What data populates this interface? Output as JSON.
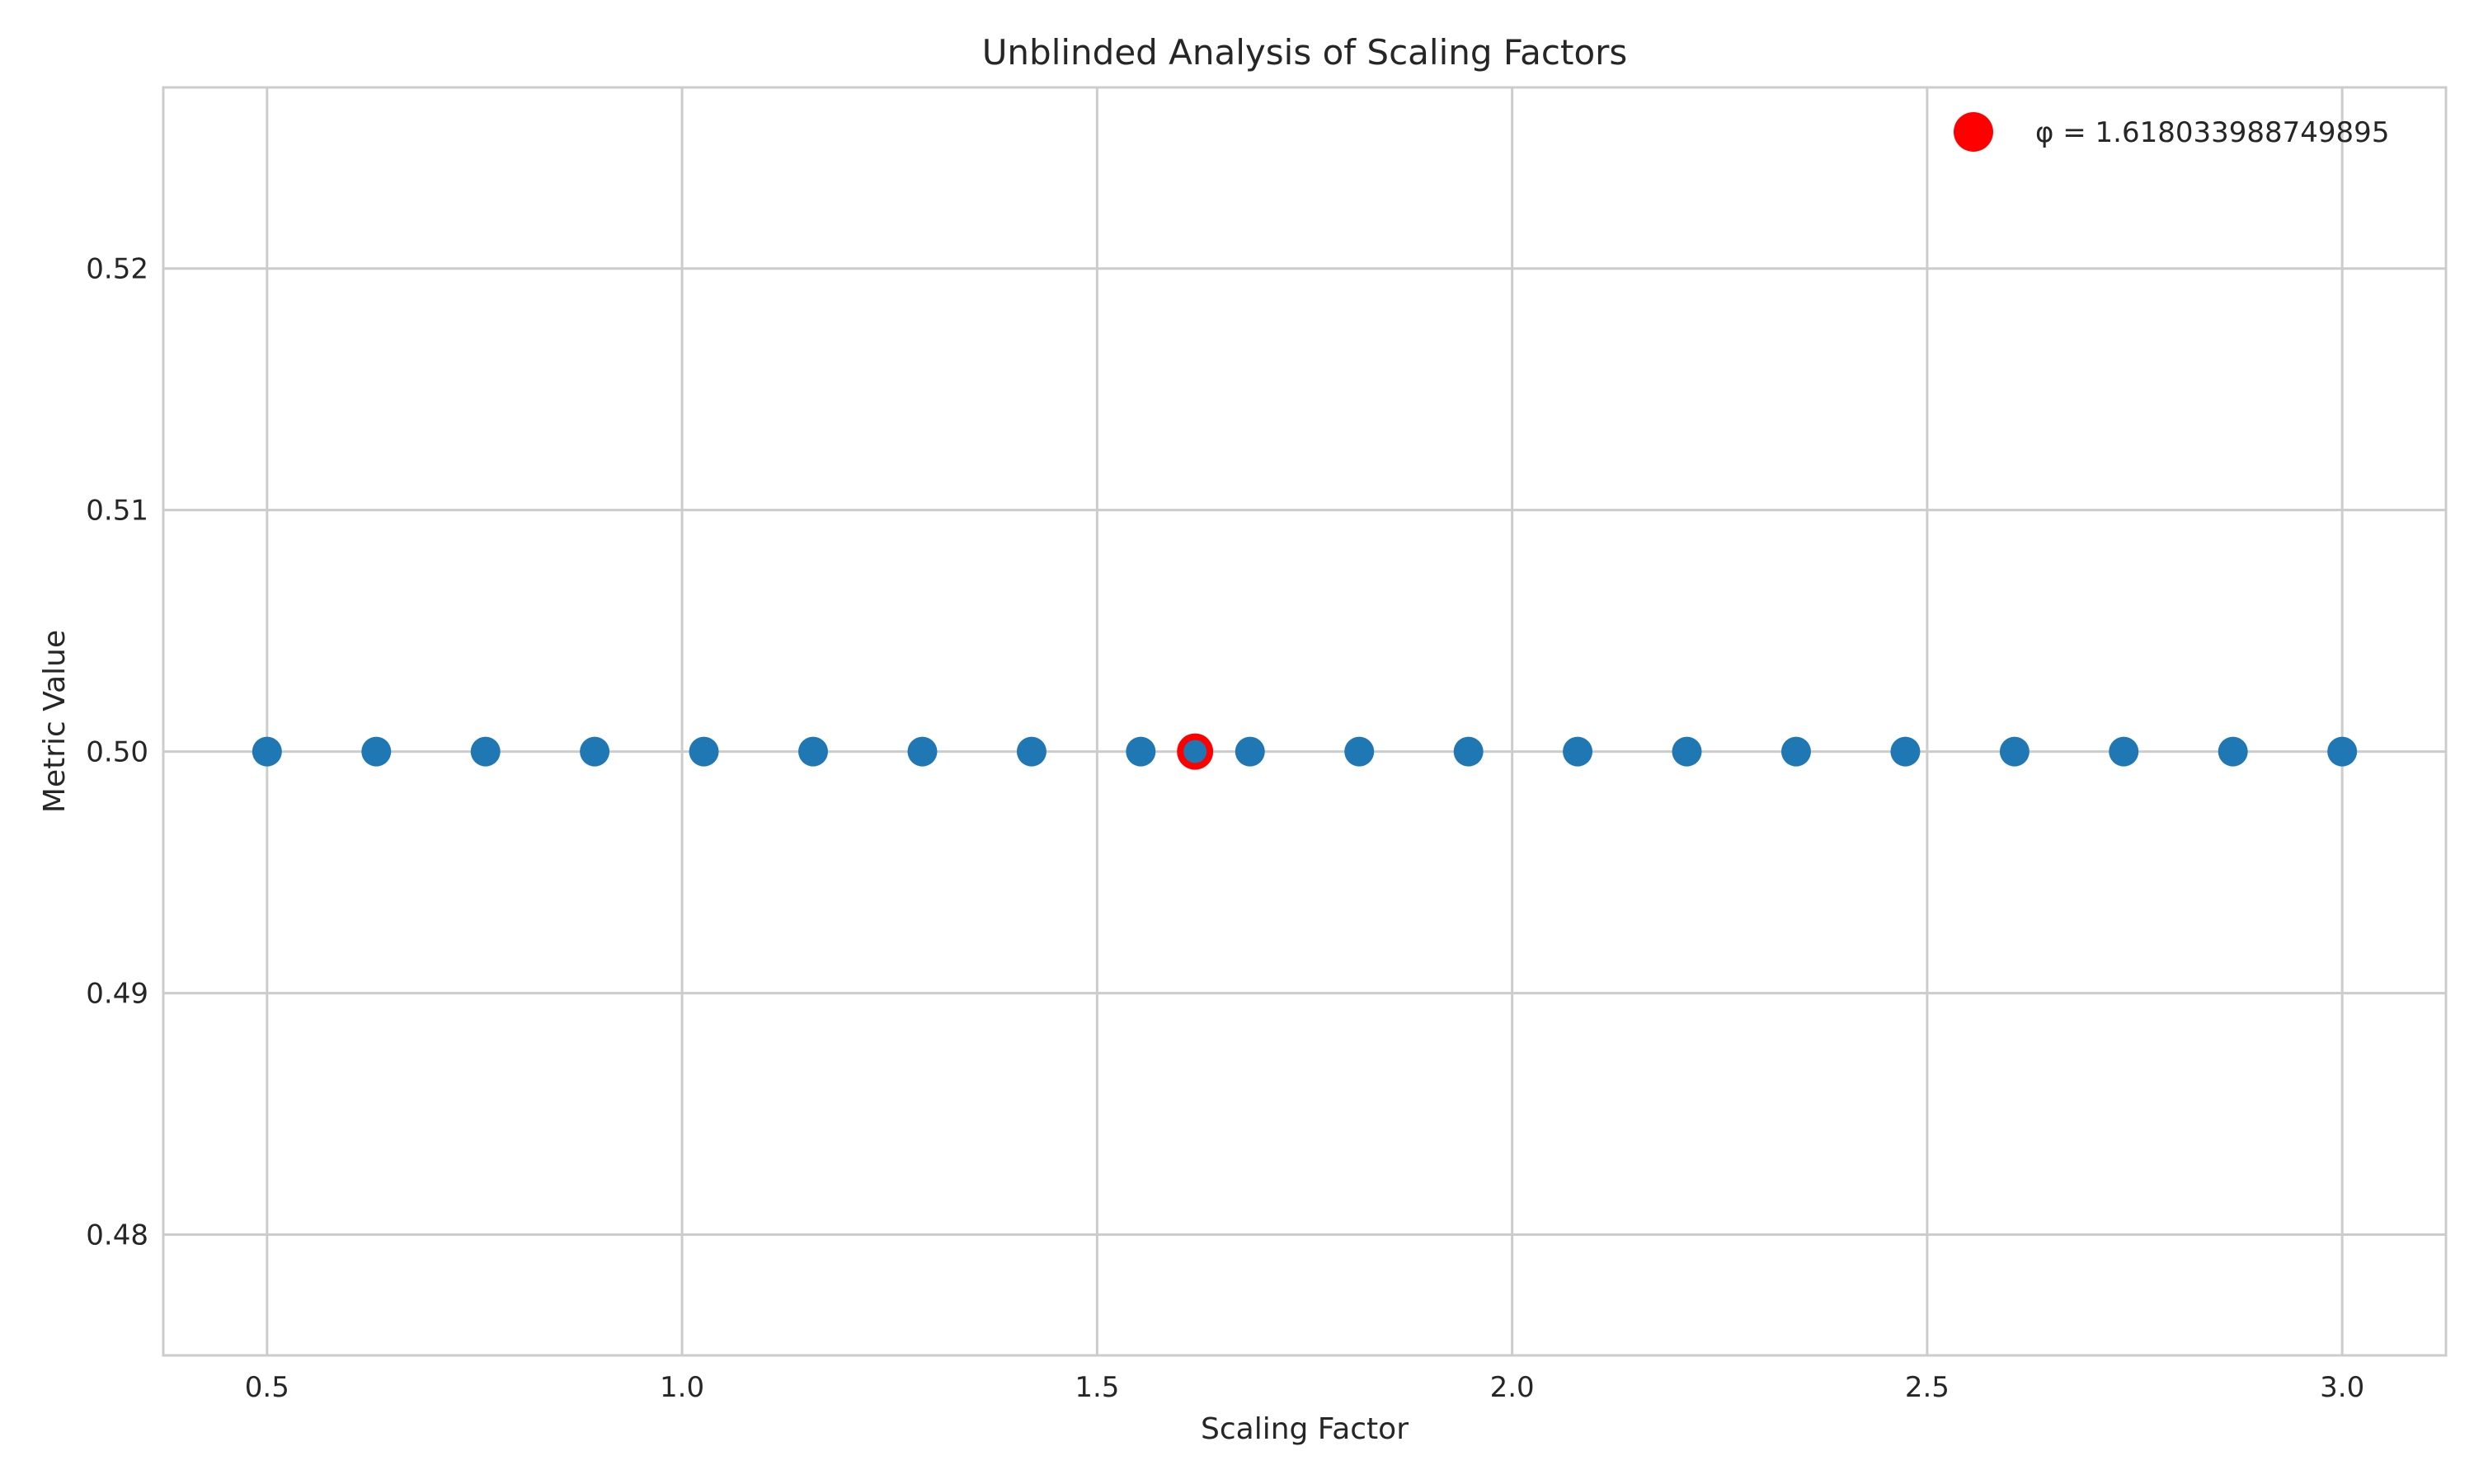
{
  "chart_data": {
    "type": "scatter",
    "title": "Unblinded Analysis of Scaling Factors",
    "xlabel": "Scaling Factor",
    "ylabel": "Metric Value",
    "xlim": [
      0.375,
      3.125
    ],
    "ylim": [
      0.475,
      0.5275
    ],
    "xticks": [
      0.5,
      1.0,
      1.5,
      2.0,
      2.5,
      3.0
    ],
    "xtick_labels": [
      "0.5",
      "1.0",
      "1.5",
      "2.0",
      "2.5",
      "3.0"
    ],
    "yticks": [
      0.48,
      0.49,
      0.5,
      0.51,
      0.52
    ],
    "ytick_labels": [
      "0.48",
      "0.49",
      "0.50",
      "0.51",
      "0.52"
    ],
    "grid": true,
    "legend_position": "top-right",
    "series": [
      {
        "color": "#1f77b4",
        "x": [
          0.5,
          0.6316,
          0.7632,
          0.8947,
          1.0263,
          1.1579,
          1.2895,
          1.4211,
          1.5526,
          1.6842,
          1.8158,
          1.9474,
          2.0789,
          2.2105,
          2.3421,
          2.4737,
          2.6053,
          2.7368,
          2.8684,
          3.0
        ],
        "y": [
          0.5,
          0.5,
          0.5,
          0.5,
          0.5,
          0.5,
          0.5,
          0.5,
          0.5,
          0.5,
          0.5,
          0.5,
          0.5,
          0.5,
          0.5,
          0.5,
          0.5,
          0.5,
          0.5,
          0.5
        ]
      },
      {
        "name": "φ = 1.618033988749895",
        "color": "#ff0000",
        "x": [
          1.618033988749895
        ],
        "y": [
          0.5
        ]
      }
    ]
  }
}
